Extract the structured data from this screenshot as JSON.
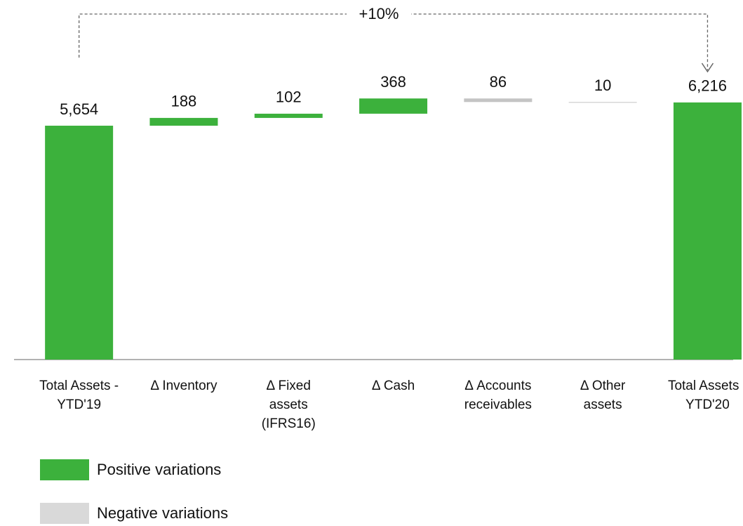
{
  "chart_data": {
    "type": "waterfall",
    "categories": [
      "Total Assets - YTD'19",
      "Δ Inventory",
      "Δ Fixed assets (IFRS16)",
      "Δ Cash",
      "Δ Accounts receivables",
      "Δ Other assets",
      "Total Assets - YTD'20"
    ],
    "values": [
      5654,
      188,
      102,
      368,
      86,
      10,
      6216
    ],
    "value_labels": [
      "5,654",
      "188",
      "102",
      "368",
      "86",
      "10",
      "6,216"
    ],
    "measure": [
      "total",
      "increase",
      "increase",
      "increase",
      "decrease",
      "decrease",
      "total"
    ],
    "series": [
      {
        "name": "Positive variations",
        "color": "#3cb13c",
        "legend_color": "#3cb13c"
      },
      {
        "name": "Negative variations",
        "color": "#c4c4c4",
        "legend_color": "#d9d9d9"
      }
    ],
    "annotation": "+10%",
    "ylim": [
      0,
      8000
    ]
  }
}
